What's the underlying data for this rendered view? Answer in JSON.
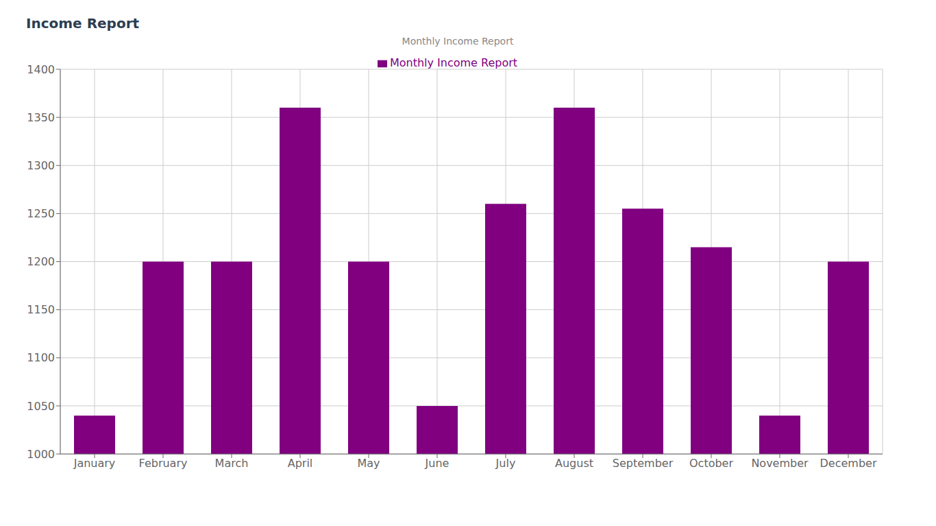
{
  "chart_data": {
    "type": "bar",
    "title": "Income Report",
    "subtitle": "Monthly Income Report",
    "categories": [
      "January",
      "February",
      "March",
      "April",
      "May",
      "June",
      "July",
      "August",
      "September",
      "October",
      "November",
      "December"
    ],
    "series": [
      {
        "name": "Monthly Income Report",
        "color": "#800080",
        "values": [
          1040,
          1200,
          1200,
          1360,
          1200,
          1050,
          1260,
          1360,
          1255,
          1215,
          1040,
          1200
        ]
      }
    ],
    "ylim": [
      1000,
      1400
    ],
    "yticks": [
      1000,
      1050,
      1100,
      1150,
      1200,
      1250,
      1300,
      1350,
      1400
    ],
    "grid": true,
    "legend": "top"
  }
}
